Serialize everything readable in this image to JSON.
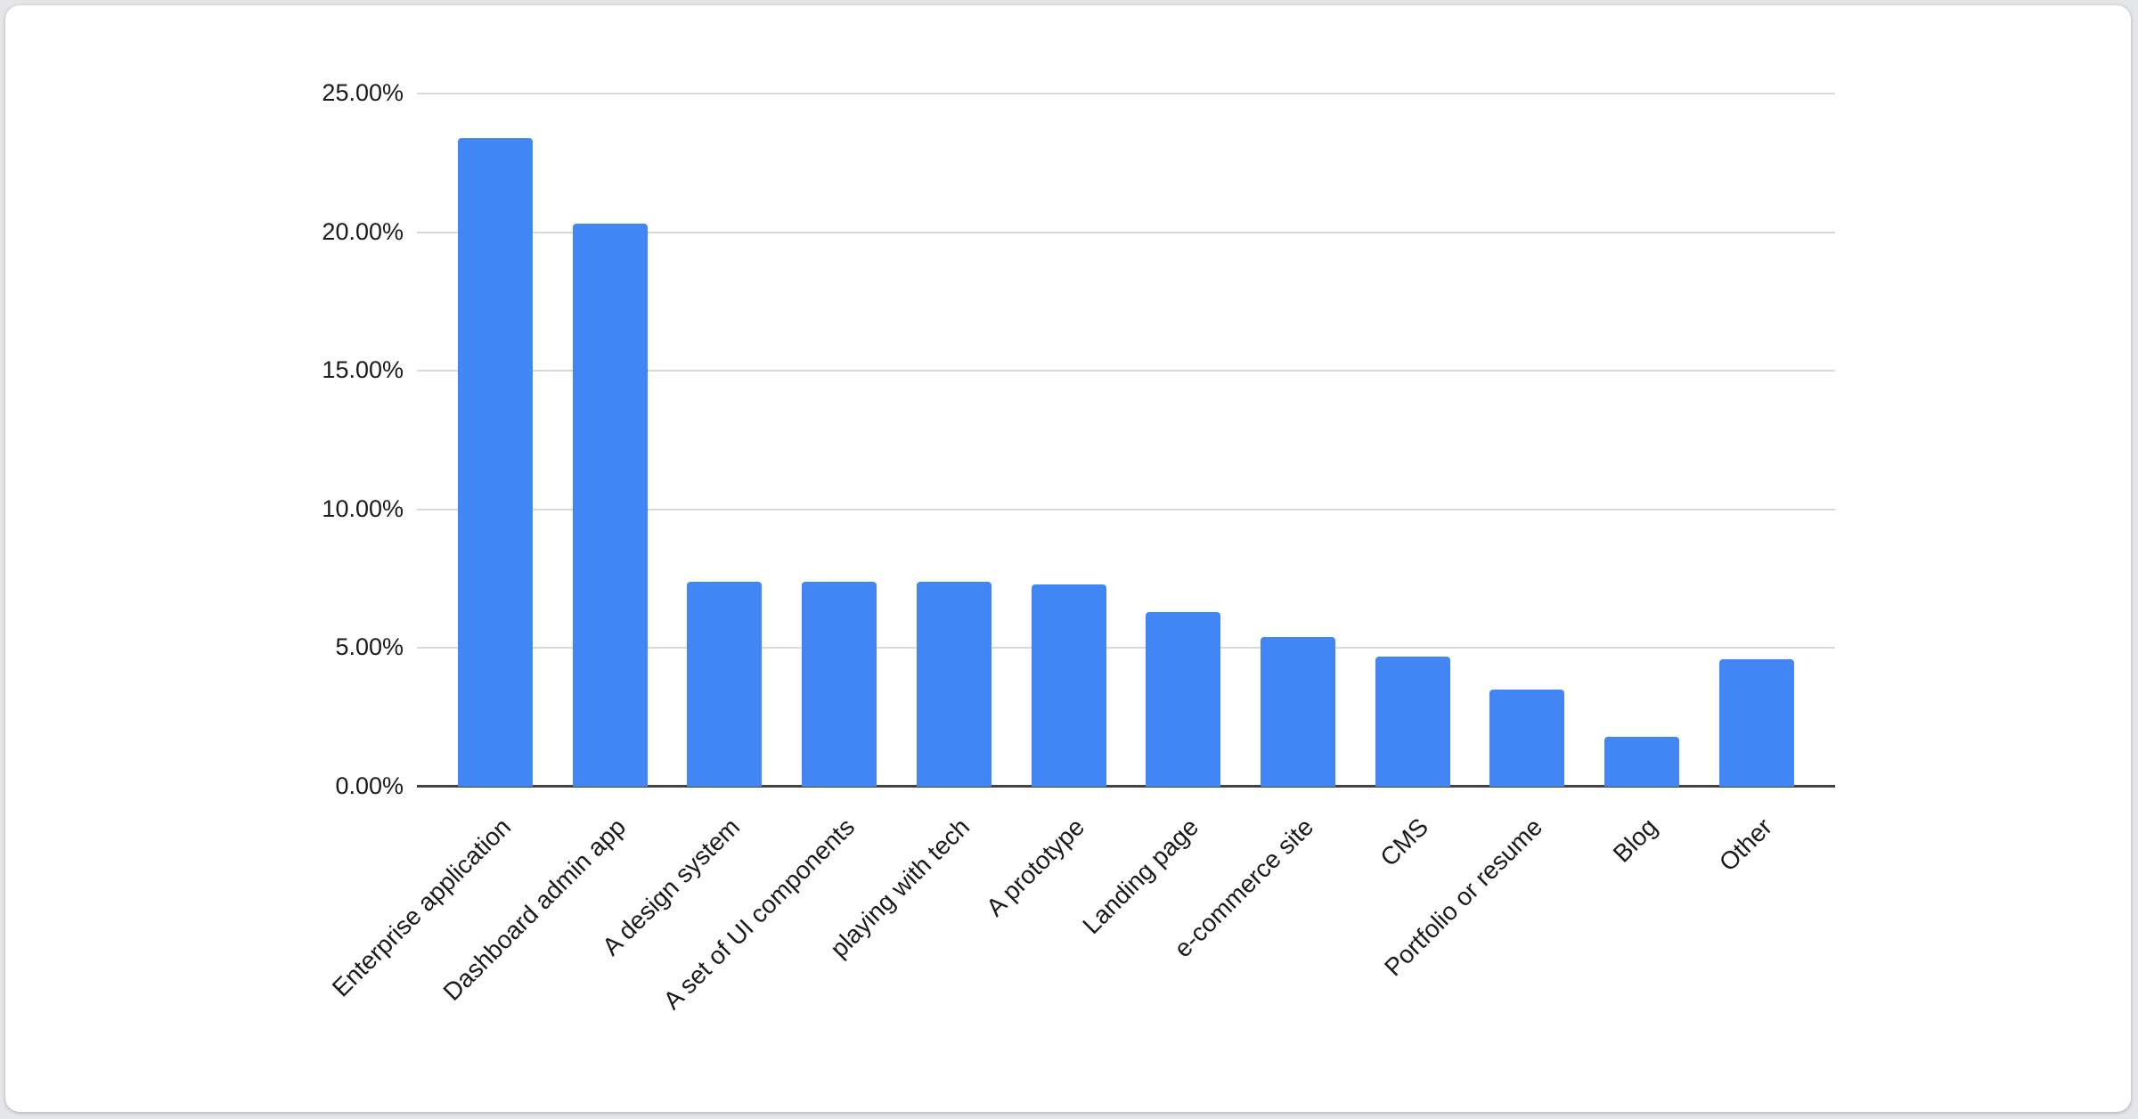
{
  "page": {
    "background_color": "#e4e6ea",
    "card_background_color": "#ffffff"
  },
  "chart_data": {
    "type": "bar",
    "title": "",
    "xlabel": "",
    "ylabel": "",
    "legend": "none",
    "grid": true,
    "ylim": [
      0,
      25
    ],
    "unit": "percent",
    "categories": [
      "Enterprise application",
      "Dashboard admin app",
      "A design system",
      "A set of UI components",
      "playing with tech",
      "A prototype",
      "Landing page",
      "e-commerce site",
      "CMS",
      "Portfolio or resume",
      "Blog",
      "Other"
    ],
    "values": [
      23.4,
      20.3,
      7.4,
      7.4,
      7.4,
      7.3,
      6.3,
      5.4,
      4.7,
      3.5,
      1.8,
      4.6
    ],
    "y_ticks": [
      {
        "value": 0,
        "label": "0.00%"
      },
      {
        "value": 5,
        "label": "5.00%"
      },
      {
        "value": 10,
        "label": "10.00%"
      },
      {
        "value": 15,
        "label": "15.00%"
      },
      {
        "value": 20,
        "label": "20.00%"
      },
      {
        "value": 25,
        "label": "25.00%"
      }
    ],
    "colors": {
      "bar": "#4285F4",
      "gridline": "#d9d9d9",
      "axis_line": "#424242",
      "label_text": "#1a1a1a"
    }
  }
}
